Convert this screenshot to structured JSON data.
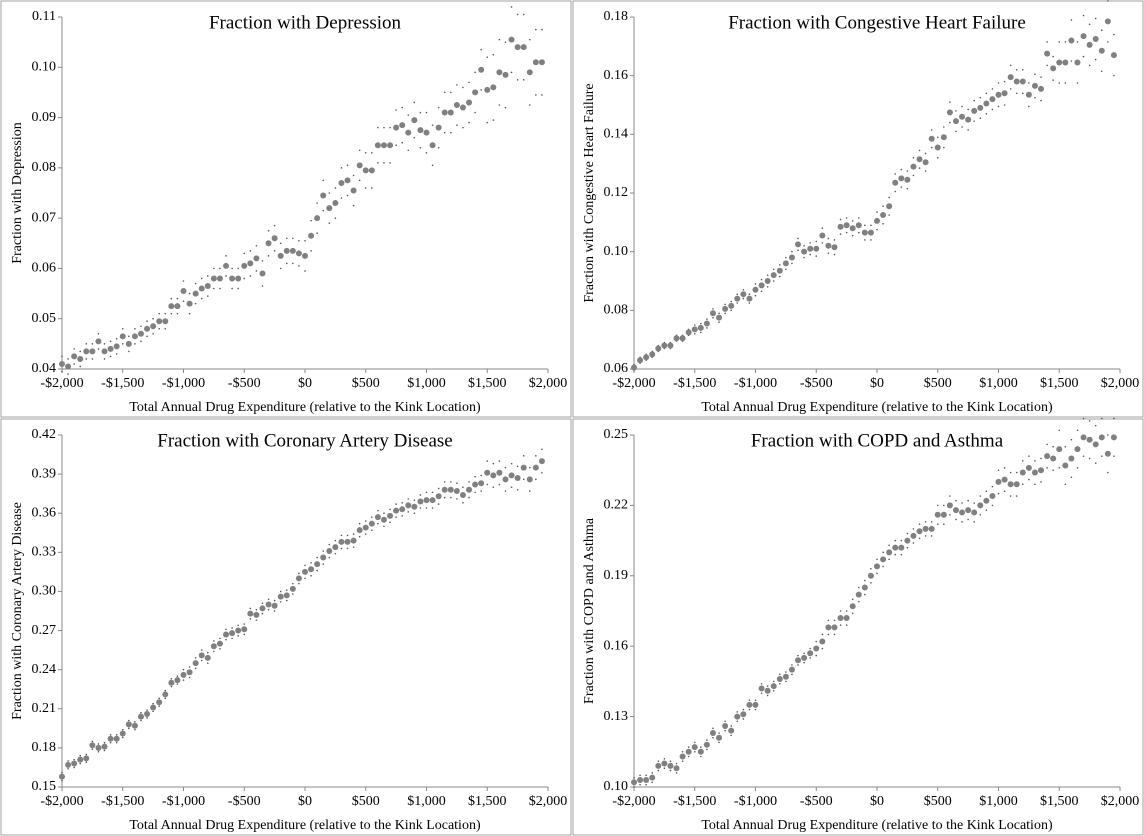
{
  "chart_data": [
    {
      "type": "scatter",
      "title": "Fraction with Depression",
      "xlabel": "Total Annual Drug Expenditure (relative to the Kink Location)",
      "ylabel": "Fraction with Depression",
      "color": "#808080",
      "x": [
        -2000,
        -1950,
        -1900,
        -1850,
        -1800,
        -1750,
        -1700,
        -1650,
        -1600,
        -1550,
        -1500,
        -1450,
        -1400,
        -1350,
        -1300,
        -1250,
        -1200,
        -1150,
        -1100,
        -1050,
        -1000,
        -950,
        -900,
        -850,
        -800,
        -750,
        -700,
        -650,
        -600,
        -550,
        -500,
        -450,
        -400,
        -350,
        -300,
        -250,
        -200,
        -150,
        -100,
        -50,
        0,
        50,
        100,
        150,
        200,
        250,
        300,
        350,
        400,
        450,
        500,
        550,
        600,
        650,
        700,
        750,
        800,
        850,
        900,
        950,
        1000,
        1050,
        1100,
        1150,
        1200,
        1250,
        1300,
        1350,
        1400,
        1450,
        1500,
        1550,
        1600,
        1650,
        1700,
        1750,
        1800,
        1850,
        1900,
        1950
      ],
      "values": [
        0.041,
        0.0405,
        0.0425,
        0.042,
        0.0435,
        0.0435,
        0.0455,
        0.0435,
        0.044,
        0.0445,
        0.0465,
        0.045,
        0.0465,
        0.047,
        0.048,
        0.0485,
        0.0495,
        0.0495,
        0.0525,
        0.0525,
        0.0555,
        0.053,
        0.055,
        0.056,
        0.0565,
        0.058,
        0.058,
        0.0605,
        0.058,
        0.058,
        0.0605,
        0.061,
        0.062,
        0.059,
        0.065,
        0.066,
        0.0625,
        0.0635,
        0.0635,
        0.063,
        0.0625,
        0.0665,
        0.07,
        0.0745,
        0.072,
        0.073,
        0.077,
        0.0775,
        0.0755,
        0.0805,
        0.0795,
        0.0795,
        0.0845,
        0.0845,
        0.0845,
        0.088,
        0.0885,
        0.087,
        0.0895,
        0.0875,
        0.087,
        0.0845,
        0.088,
        0.091,
        0.091,
        0.0925,
        0.092,
        0.093,
        0.095,
        0.0995,
        0.0955,
        0.096,
        0.099,
        0.0985,
        0.1055,
        0.104,
        0.104,
        0.099,
        0.101,
        0.101
      ],
      "errors": [
        0.0015,
        0.0015,
        0.0015,
        0.0015,
        0.0015,
        0.0015,
        0.0015,
        0.0015,
        0.0015,
        0.0015,
        0.0015,
        0.0015,
        0.0015,
        0.0015,
        0.0015,
        0.0015,
        0.0015,
        0.0015,
        0.0015,
        0.0015,
        0.002,
        0.002,
        0.002,
        0.002,
        0.002,
        0.002,
        0.002,
        0.002,
        0.002,
        0.002,
        0.0025,
        0.0025,
        0.0025,
        0.0025,
        0.0025,
        0.0025,
        0.0025,
        0.0025,
        0.0025,
        0.0025,
        0.003,
        0.003,
        0.003,
        0.003,
        0.003,
        0.003,
        0.003,
        0.003,
        0.003,
        0.003,
        0.0035,
        0.0035,
        0.0035,
        0.0035,
        0.0035,
        0.0035,
        0.0035,
        0.0035,
        0.0035,
        0.0035,
        0.004,
        0.004,
        0.004,
        0.004,
        0.004,
        0.004,
        0.004,
        0.004,
        0.004,
        0.004,
        0.0065,
        0.0065,
        0.0065,
        0.0065,
        0.0065,
        0.0065,
        0.0065,
        0.0065,
        0.0065,
        0.0065
      ],
      "xlim": [
        -2000,
        2000
      ],
      "xticks": [
        {
          "value": -2000,
          "label": "-$2,000"
        },
        {
          "value": -1500,
          "label": "-$1,500"
        },
        {
          "value": -1000,
          "label": "-$1,000"
        },
        {
          "value": -500,
          "label": "-$500"
        },
        {
          "value": 0,
          "label": "$0"
        },
        {
          "value": 500,
          "label": "$500"
        },
        {
          "value": 1000,
          "label": "$1,000"
        },
        {
          "value": 1500,
          "label": "$1,500"
        },
        {
          "value": 2000,
          "label": "$2,000"
        }
      ],
      "ylim": [
        0.04,
        0.11
      ],
      "yticks": [
        0.04,
        0.05,
        0.06,
        0.07,
        0.08,
        0.09,
        {
          "value": 0.1,
          "label": "0.10"
        },
        0.11
      ]
    },
    {
      "type": "scatter",
      "title": "Fraction with Congestive  Heart Failure",
      "xlabel": "Total Annual Drug Expenditure (relative to the Kink Location)",
      "ylabel": "Fraction with Congestive Heart Failure",
      "color": "#808080",
      "x": [
        -2000,
        -1950,
        -1900,
        -1850,
        -1800,
        -1750,
        -1700,
        -1650,
        -1600,
        -1550,
        -1500,
        -1450,
        -1400,
        -1350,
        -1300,
        -1250,
        -1200,
        -1150,
        -1100,
        -1050,
        -1000,
        -950,
        -900,
        -850,
        -800,
        -750,
        -700,
        -650,
        -600,
        -550,
        -500,
        -450,
        -400,
        -350,
        -300,
        -250,
        -200,
        -150,
        -100,
        -50,
        0,
        50,
        100,
        150,
        200,
        250,
        300,
        350,
        400,
        450,
        500,
        550,
        600,
        650,
        700,
        750,
        800,
        850,
        900,
        950,
        1000,
        1050,
        1100,
        1150,
        1200,
        1250,
        1300,
        1350,
        1400,
        1450,
        1500,
        1550,
        1600,
        1650,
        1700,
        1750,
        1800,
        1850,
        1900,
        1950
      ],
      "values": [
        0.0605,
        0.063,
        0.064,
        0.065,
        0.067,
        0.068,
        0.068,
        0.0705,
        0.0705,
        0.0725,
        0.0735,
        0.074,
        0.0755,
        0.079,
        0.0775,
        0.0805,
        0.0815,
        0.084,
        0.0855,
        0.084,
        0.087,
        0.0885,
        0.09,
        0.092,
        0.0935,
        0.096,
        0.098,
        0.1025,
        0.1,
        0.101,
        0.101,
        0.1055,
        0.102,
        0.1015,
        0.1085,
        0.109,
        0.108,
        0.109,
        0.1065,
        0.1065,
        0.1105,
        0.1125,
        0.1155,
        0.1235,
        0.125,
        0.1245,
        0.129,
        0.1315,
        0.1305,
        0.1385,
        0.1355,
        0.139,
        0.1475,
        0.1445,
        0.146,
        0.145,
        0.148,
        0.149,
        0.1505,
        0.152,
        0.1535,
        0.154,
        0.1595,
        0.158,
        0.158,
        0.1535,
        0.1565,
        0.1555,
        0.1675,
        0.1625,
        0.1645,
        0.1645,
        0.172,
        0.1645,
        0.1735,
        0.1705,
        0.1725,
        0.1685,
        0.1785,
        0.167
      ],
      "errors": [
        0.001,
        0.001,
        0.001,
        0.001,
        0.001,
        0.001,
        0.001,
        0.001,
        0.001,
        0.001,
        0.0015,
        0.0015,
        0.0015,
        0.0015,
        0.0015,
        0.0015,
        0.0015,
        0.0015,
        0.0015,
        0.0015,
        0.002,
        0.002,
        0.002,
        0.002,
        0.002,
        0.002,
        0.002,
        0.002,
        0.002,
        0.002,
        0.0025,
        0.0025,
        0.0025,
        0.0025,
        0.0025,
        0.0025,
        0.0025,
        0.0025,
        0.0025,
        0.0025,
        0.003,
        0.003,
        0.003,
        0.003,
        0.003,
        0.003,
        0.003,
        0.003,
        0.003,
        0.003,
        0.0035,
        0.0035,
        0.0035,
        0.0035,
        0.0035,
        0.0035,
        0.0035,
        0.0035,
        0.0035,
        0.0035,
        0.004,
        0.004,
        0.004,
        0.004,
        0.004,
        0.004,
        0.004,
        0.004,
        0.004,
        0.004,
        0.007,
        0.007,
        0.007,
        0.007,
        0.007,
        0.007,
        0.007,
        0.007,
        0.007,
        0.007
      ],
      "xlim": [
        -2000,
        2000
      ],
      "xticks": [
        {
          "value": -2000,
          "label": "-$2,000"
        },
        {
          "value": -1500,
          "label": "-$1,500"
        },
        {
          "value": -1000,
          "label": "-$1,000"
        },
        {
          "value": -500,
          "label": "-$500"
        },
        {
          "value": 0,
          "label": "$0"
        },
        {
          "value": 500,
          "label": "$500"
        },
        {
          "value": 1000,
          "label": "$1,000"
        },
        {
          "value": 1500,
          "label": "$1,500"
        },
        {
          "value": 2000,
          "label": "$2,000"
        }
      ],
      "ylim": [
        0.06,
        0.18
      ],
      "yticks": [
        0.06,
        0.08,
        {
          "value": 0.1,
          "label": "0.10"
        },
        0.12,
        0.14,
        0.16,
        0.18
      ]
    },
    {
      "type": "scatter",
      "title": "Fraction with Coronary Artery Disease",
      "xlabel": "Total Annual Drug Expenditure (relative to the Kink Location)",
      "ylabel": "Fraction with Coronary Artery Disease",
      "color": "#808080",
      "x": [
        -2000,
        -1950,
        -1900,
        -1850,
        -1800,
        -1750,
        -1700,
        -1650,
        -1600,
        -1550,
        -1500,
        -1450,
        -1400,
        -1350,
        -1300,
        -1250,
        -1200,
        -1150,
        -1100,
        -1050,
        -1000,
        -950,
        -900,
        -850,
        -800,
        -750,
        -700,
        -650,
        -600,
        -550,
        -500,
        -450,
        -400,
        -350,
        -300,
        -250,
        -200,
        -150,
        -100,
        -50,
        0,
        50,
        100,
        150,
        200,
        250,
        300,
        350,
        400,
        450,
        500,
        550,
        600,
        650,
        700,
        750,
        800,
        850,
        900,
        950,
        1000,
        1050,
        1100,
        1150,
        1200,
        1250,
        1300,
        1350,
        1400,
        1450,
        1500,
        1550,
        1600,
        1650,
        1700,
        1750,
        1800,
        1850,
        1900,
        1950
      ],
      "values": [
        0.158,
        0.167,
        0.168,
        0.171,
        0.172,
        0.182,
        0.18,
        0.181,
        0.187,
        0.187,
        0.191,
        0.198,
        0.197,
        0.204,
        0.206,
        0.211,
        0.215,
        0.221,
        0.23,
        0.232,
        0.236,
        0.238,
        0.245,
        0.251,
        0.249,
        0.258,
        0.26,
        0.267,
        0.268,
        0.27,
        0.271,
        0.283,
        0.282,
        0.287,
        0.29,
        0.289,
        0.296,
        0.297,
        0.302,
        0.31,
        0.315,
        0.317,
        0.321,
        0.326,
        0.331,
        0.334,
        0.338,
        0.338,
        0.339,
        0.347,
        0.349,
        0.352,
        0.357,
        0.355,
        0.358,
        0.362,
        0.363,
        0.366,
        0.365,
        0.369,
        0.37,
        0.37,
        0.373,
        0.378,
        0.378,
        0.377,
        0.374,
        0.378,
        0.382,
        0.383,
        0.391,
        0.389,
        0.391,
        0.386,
        0.389,
        0.387,
        0.395,
        0.386,
        0.395,
        0.4
      ],
      "errors": [
        0.003,
        0.003,
        0.003,
        0.003,
        0.003,
        0.003,
        0.003,
        0.003,
        0.003,
        0.003,
        0.003,
        0.003,
        0.003,
        0.003,
        0.003,
        0.003,
        0.003,
        0.003,
        0.003,
        0.003,
        0.004,
        0.004,
        0.004,
        0.004,
        0.004,
        0.004,
        0.004,
        0.004,
        0.004,
        0.004,
        0.004,
        0.004,
        0.004,
        0.004,
        0.004,
        0.004,
        0.004,
        0.004,
        0.004,
        0.004,
        0.005,
        0.005,
        0.005,
        0.005,
        0.005,
        0.005,
        0.005,
        0.005,
        0.005,
        0.005,
        0.005,
        0.005,
        0.005,
        0.005,
        0.005,
        0.005,
        0.005,
        0.005,
        0.005,
        0.005,
        0.006,
        0.006,
        0.006,
        0.006,
        0.006,
        0.006,
        0.006,
        0.006,
        0.006,
        0.006,
        0.009,
        0.009,
        0.009,
        0.009,
        0.009,
        0.009,
        0.009,
        0.009,
        0.009,
        0.009
      ],
      "xlim": [
        -2000,
        2000
      ],
      "xticks": [
        {
          "value": -2000,
          "label": "-$2,000"
        },
        {
          "value": -1500,
          "label": "-$1,500"
        },
        {
          "value": -1000,
          "label": "-$1,000"
        },
        {
          "value": -500,
          "label": "-$500"
        },
        {
          "value": 0,
          "label": "$0"
        },
        {
          "value": 500,
          "label": "$500"
        },
        {
          "value": 1000,
          "label": "$1,000"
        },
        {
          "value": 1500,
          "label": "$1,500"
        },
        {
          "value": 2000,
          "label": "$2,000"
        }
      ],
      "ylim": [
        0.15,
        0.42
      ],
      "yticks": [
        0.15,
        0.18,
        0.21,
        0.24,
        0.27,
        {
          "value": 0.3,
          "label": "0.30"
        },
        0.33,
        0.36,
        0.39,
        0.42
      ]
    },
    {
      "type": "scatter",
      "title": "Fraction with COPD and Asthma",
      "xlabel": "Total Annual Drug Expenditure (relative to the Kink Location)",
      "ylabel": "Fraction with COPD and Asthma",
      "color": "#808080",
      "x": [
        -2000,
        -1950,
        -1900,
        -1850,
        -1800,
        -1750,
        -1700,
        -1650,
        -1600,
        -1550,
        -1500,
        -1450,
        -1400,
        -1350,
        -1300,
        -1250,
        -1200,
        -1150,
        -1100,
        -1050,
        -1000,
        -950,
        -900,
        -850,
        -800,
        -750,
        -700,
        -650,
        -600,
        -550,
        -500,
        -450,
        -400,
        -350,
        -300,
        -250,
        -200,
        -150,
        -100,
        -50,
        0,
        50,
        100,
        150,
        200,
        250,
        300,
        350,
        400,
        450,
        500,
        550,
        600,
        650,
        700,
        750,
        800,
        850,
        900,
        950,
        1000,
        1050,
        1100,
        1150,
        1200,
        1250,
        1300,
        1350,
        1400,
        1450,
        1500,
        1550,
        1600,
        1650,
        1700,
        1750,
        1800,
        1850,
        1900,
        1950
      ],
      "values": [
        0.102,
        0.103,
        0.103,
        0.104,
        0.109,
        0.11,
        0.109,
        0.108,
        0.113,
        0.115,
        0.117,
        0.115,
        0.118,
        0.123,
        0.121,
        0.126,
        0.124,
        0.13,
        0.131,
        0.135,
        0.135,
        0.142,
        0.141,
        0.143,
        0.146,
        0.147,
        0.15,
        0.154,
        0.155,
        0.157,
        0.159,
        0.162,
        0.168,
        0.168,
        0.172,
        0.172,
        0.177,
        0.182,
        0.185,
        0.19,
        0.194,
        0.197,
        0.2,
        0.202,
        0.202,
        0.205,
        0.207,
        0.209,
        0.21,
        0.21,
        0.216,
        0.216,
        0.22,
        0.218,
        0.217,
        0.218,
        0.217,
        0.22,
        0.222,
        0.224,
        0.23,
        0.231,
        0.229,
        0.229,
        0.234,
        0.236,
        0.234,
        0.235,
        0.241,
        0.24,
        0.244,
        0.237,
        0.24,
        0.244,
        0.249,
        0.248,
        0.246,
        0.249,
        0.242,
        0.249
      ],
      "errors": [
        0.002,
        0.002,
        0.002,
        0.002,
        0.002,
        0.002,
        0.002,
        0.002,
        0.002,
        0.002,
        0.002,
        0.002,
        0.002,
        0.002,
        0.002,
        0.002,
        0.002,
        0.002,
        0.002,
        0.002,
        0.002,
        0.002,
        0.002,
        0.002,
        0.002,
        0.002,
        0.002,
        0.002,
        0.002,
        0.002,
        0.003,
        0.003,
        0.003,
        0.003,
        0.003,
        0.003,
        0.003,
        0.003,
        0.003,
        0.003,
        0.003,
        0.003,
        0.003,
        0.003,
        0.003,
        0.003,
        0.003,
        0.003,
        0.003,
        0.003,
        0.004,
        0.004,
        0.004,
        0.004,
        0.004,
        0.004,
        0.004,
        0.004,
        0.004,
        0.004,
        0.005,
        0.005,
        0.005,
        0.005,
        0.005,
        0.005,
        0.005,
        0.005,
        0.005,
        0.005,
        0.008,
        0.008,
        0.008,
        0.008,
        0.008,
        0.008,
        0.008,
        0.008,
        0.008,
        0.008
      ],
      "xlim": [
        -2000,
        2000
      ],
      "xticks": [
        {
          "value": -2000,
          "label": "-$2,000"
        },
        {
          "value": -1500,
          "label": "-$1,500"
        },
        {
          "value": -1000,
          "label": "-$1,000"
        },
        {
          "value": -500,
          "label": "-$500"
        },
        {
          "value": 0,
          "label": "$0"
        },
        {
          "value": 500,
          "label": "$500"
        },
        {
          "value": 1000,
          "label": "$1,000"
        },
        {
          "value": 1500,
          "label": "$1,500"
        },
        {
          "value": 2000,
          "label": "$2,000"
        }
      ],
      "ylim": [
        0.1,
        0.25
      ],
      "yticks": [
        {
          "value": 0.1,
          "label": "0.10"
        },
        0.13,
        0.16,
        0.19,
        0.22,
        0.25
      ]
    }
  ]
}
